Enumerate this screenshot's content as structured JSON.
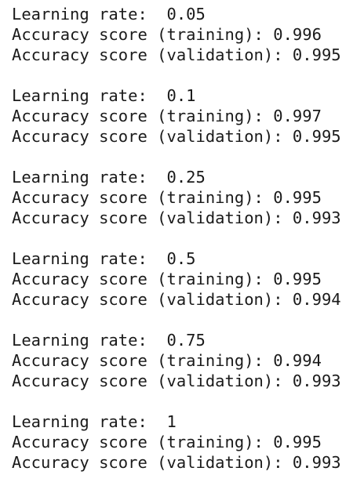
{
  "blocks": [
    {
      "lines": [
        "Learning rate:  0.05",
        "Accuracy score (training): 0.996",
        "Accuracy score (validation): 0.995"
      ]
    },
    {
      "lines": [
        "Learning rate:  0.1",
        "Accuracy score (training): 0.997",
        "Accuracy score (validation): 0.995"
      ]
    },
    {
      "lines": [
        "Learning rate:  0.25",
        "Accuracy score (training): 0.995",
        "Accuracy score (validation): 0.993"
      ]
    },
    {
      "lines": [
        "Learning rate:  0.5",
        "Accuracy score (training): 0.995",
        "Accuracy score (validation): 0.994"
      ]
    },
    {
      "lines": [
        "Learning rate:  0.75",
        "Accuracy score (training): 0.994",
        "Accuracy score (validation): 0.993"
      ]
    },
    {
      "lines": [
        "Learning rate:  1",
        "Accuracy score (training): 0.995",
        "Accuracy score (validation): 0.993"
      ]
    }
  ]
}
